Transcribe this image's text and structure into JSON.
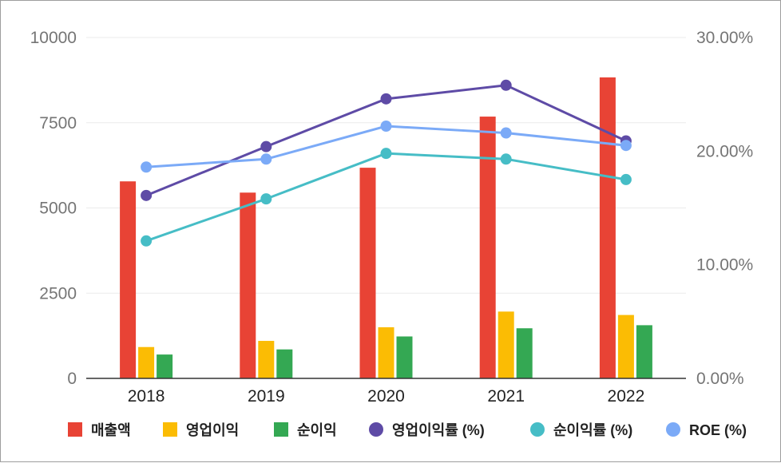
{
  "chart_data": {
    "type": "bar",
    "categories": [
      "2018",
      "2019",
      "2020",
      "2021",
      "2022"
    ],
    "y_left": {
      "range": [
        0,
        10000
      ],
      "ticks": [
        0,
        2500,
        5000,
        7500,
        10000
      ],
      "tick_labels": [
        "0",
        "2500",
        "5000",
        "7500",
        "10000"
      ]
    },
    "y_right": {
      "range": [
        0,
        30
      ],
      "ticks": [
        0,
        10,
        20,
        30
      ],
      "tick_labels": [
        "0.00%",
        "10.00%",
        "20.00%",
        "30.00%"
      ]
    },
    "grid": true,
    "legend_position": "bottom",
    "bar_series": [
      {
        "name": "매출액",
        "color": "#e84335",
        "axis": "left",
        "values": [
          5780,
          5450,
          6180,
          7680,
          8830
        ]
      },
      {
        "name": "영업이익",
        "color": "#fbbc04",
        "axis": "left",
        "values": [
          920,
          1100,
          1500,
          1960,
          1860
        ]
      },
      {
        "name": "순이익",
        "color": "#34a853",
        "axis": "left",
        "values": [
          700,
          850,
          1230,
          1470,
          1560
        ]
      }
    ],
    "line_series": [
      {
        "name": "영업이익률 (%)",
        "color": "#5e4ba6",
        "axis": "right",
        "values": [
          16.1,
          20.4,
          24.6,
          25.8,
          20.9
        ]
      },
      {
        "name": "순이익률 (%)",
        "color": "#46bdc6",
        "axis": "right",
        "values": [
          12.1,
          15.8,
          19.8,
          19.3,
          17.5
        ]
      },
      {
        "name": "ROE (%)",
        "color": "#7baaf7",
        "axis": "right",
        "values": [
          18.6,
          19.3,
          22.2,
          21.6,
          20.5
        ]
      }
    ]
  }
}
